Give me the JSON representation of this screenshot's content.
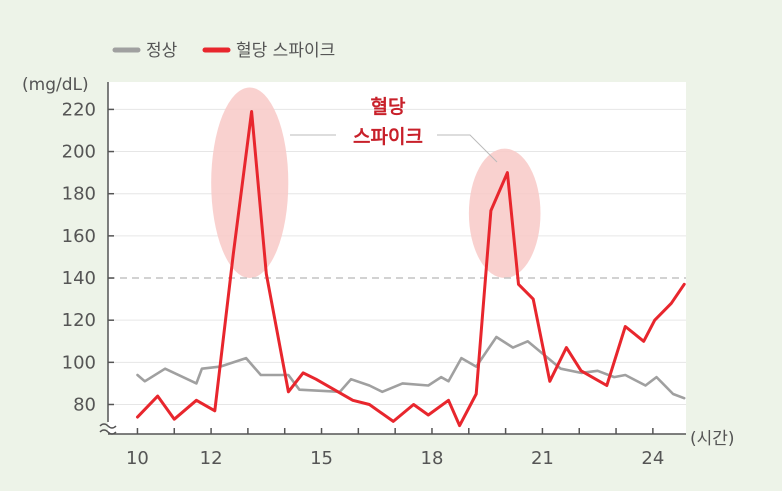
{
  "chart_data": {
    "type": "line",
    "ylabel": "(mg/dL)",
    "xlabel": "(시간)",
    "ylim": [
      66,
      233
    ],
    "xlim": [
      9.2,
      24.9
    ],
    "yticks": [
      80,
      100,
      120,
      140,
      160,
      180,
      200,
      220
    ],
    "xticks": [
      10,
      12,
      15,
      18,
      21,
      24
    ],
    "reference_line": 140,
    "grid": true,
    "legend_position": "top-left",
    "series": [
      {
        "name": "정상",
        "color": "#a0a0a0",
        "x": [
          10,
          10.2,
          10.75,
          11.6,
          11.75,
          12.25,
          12.95,
          13.35,
          14.1,
          14.4,
          15.5,
          15.8,
          16.3,
          16.65,
          17.2,
          17.9,
          18.25,
          18.45,
          18.8,
          19.2,
          19.75,
          20.2,
          20.6,
          21.5,
          22.05,
          22.5,
          22.95,
          23.25,
          23.8,
          24.1,
          24.55,
          24.85
        ],
        "y": [
          94,
          91,
          97,
          90,
          97,
          98,
          102,
          94,
          94,
          87,
          86,
          92,
          89,
          86,
          90,
          89,
          93,
          91,
          102,
          98,
          112,
          107,
          110,
          97,
          95,
          96,
          93,
          94,
          89,
          93,
          85,
          83
        ]
      },
      {
        "name": "혈당 스파이크",
        "color": "#e8262d",
        "x": [
          10,
          10.55,
          11,
          11.6,
          12.1,
          12.6,
          13.1,
          13.5,
          14.1,
          14.5,
          14.85,
          15.85,
          16.3,
          16.95,
          17.5,
          17.9,
          18.45,
          18.75,
          19.2,
          19.6,
          20.05,
          20.35,
          20.75,
          21.2,
          21.65,
          22.05,
          22.75,
          23.25,
          23.75,
          24.05,
          24.5,
          24.85
        ],
        "y": [
          74,
          84,
          73,
          82,
          77,
          151,
          219,
          142,
          86,
          95,
          92,
          82,
          80,
          72,
          80,
          75,
          82,
          70,
          85,
          172,
          190,
          137,
          130,
          91,
          107,
          96,
          89,
          117,
          110,
          120,
          128,
          137
        ]
      }
    ],
    "annotation": {
      "line1": "혈당",
      "line2": "스파이크"
    }
  }
}
